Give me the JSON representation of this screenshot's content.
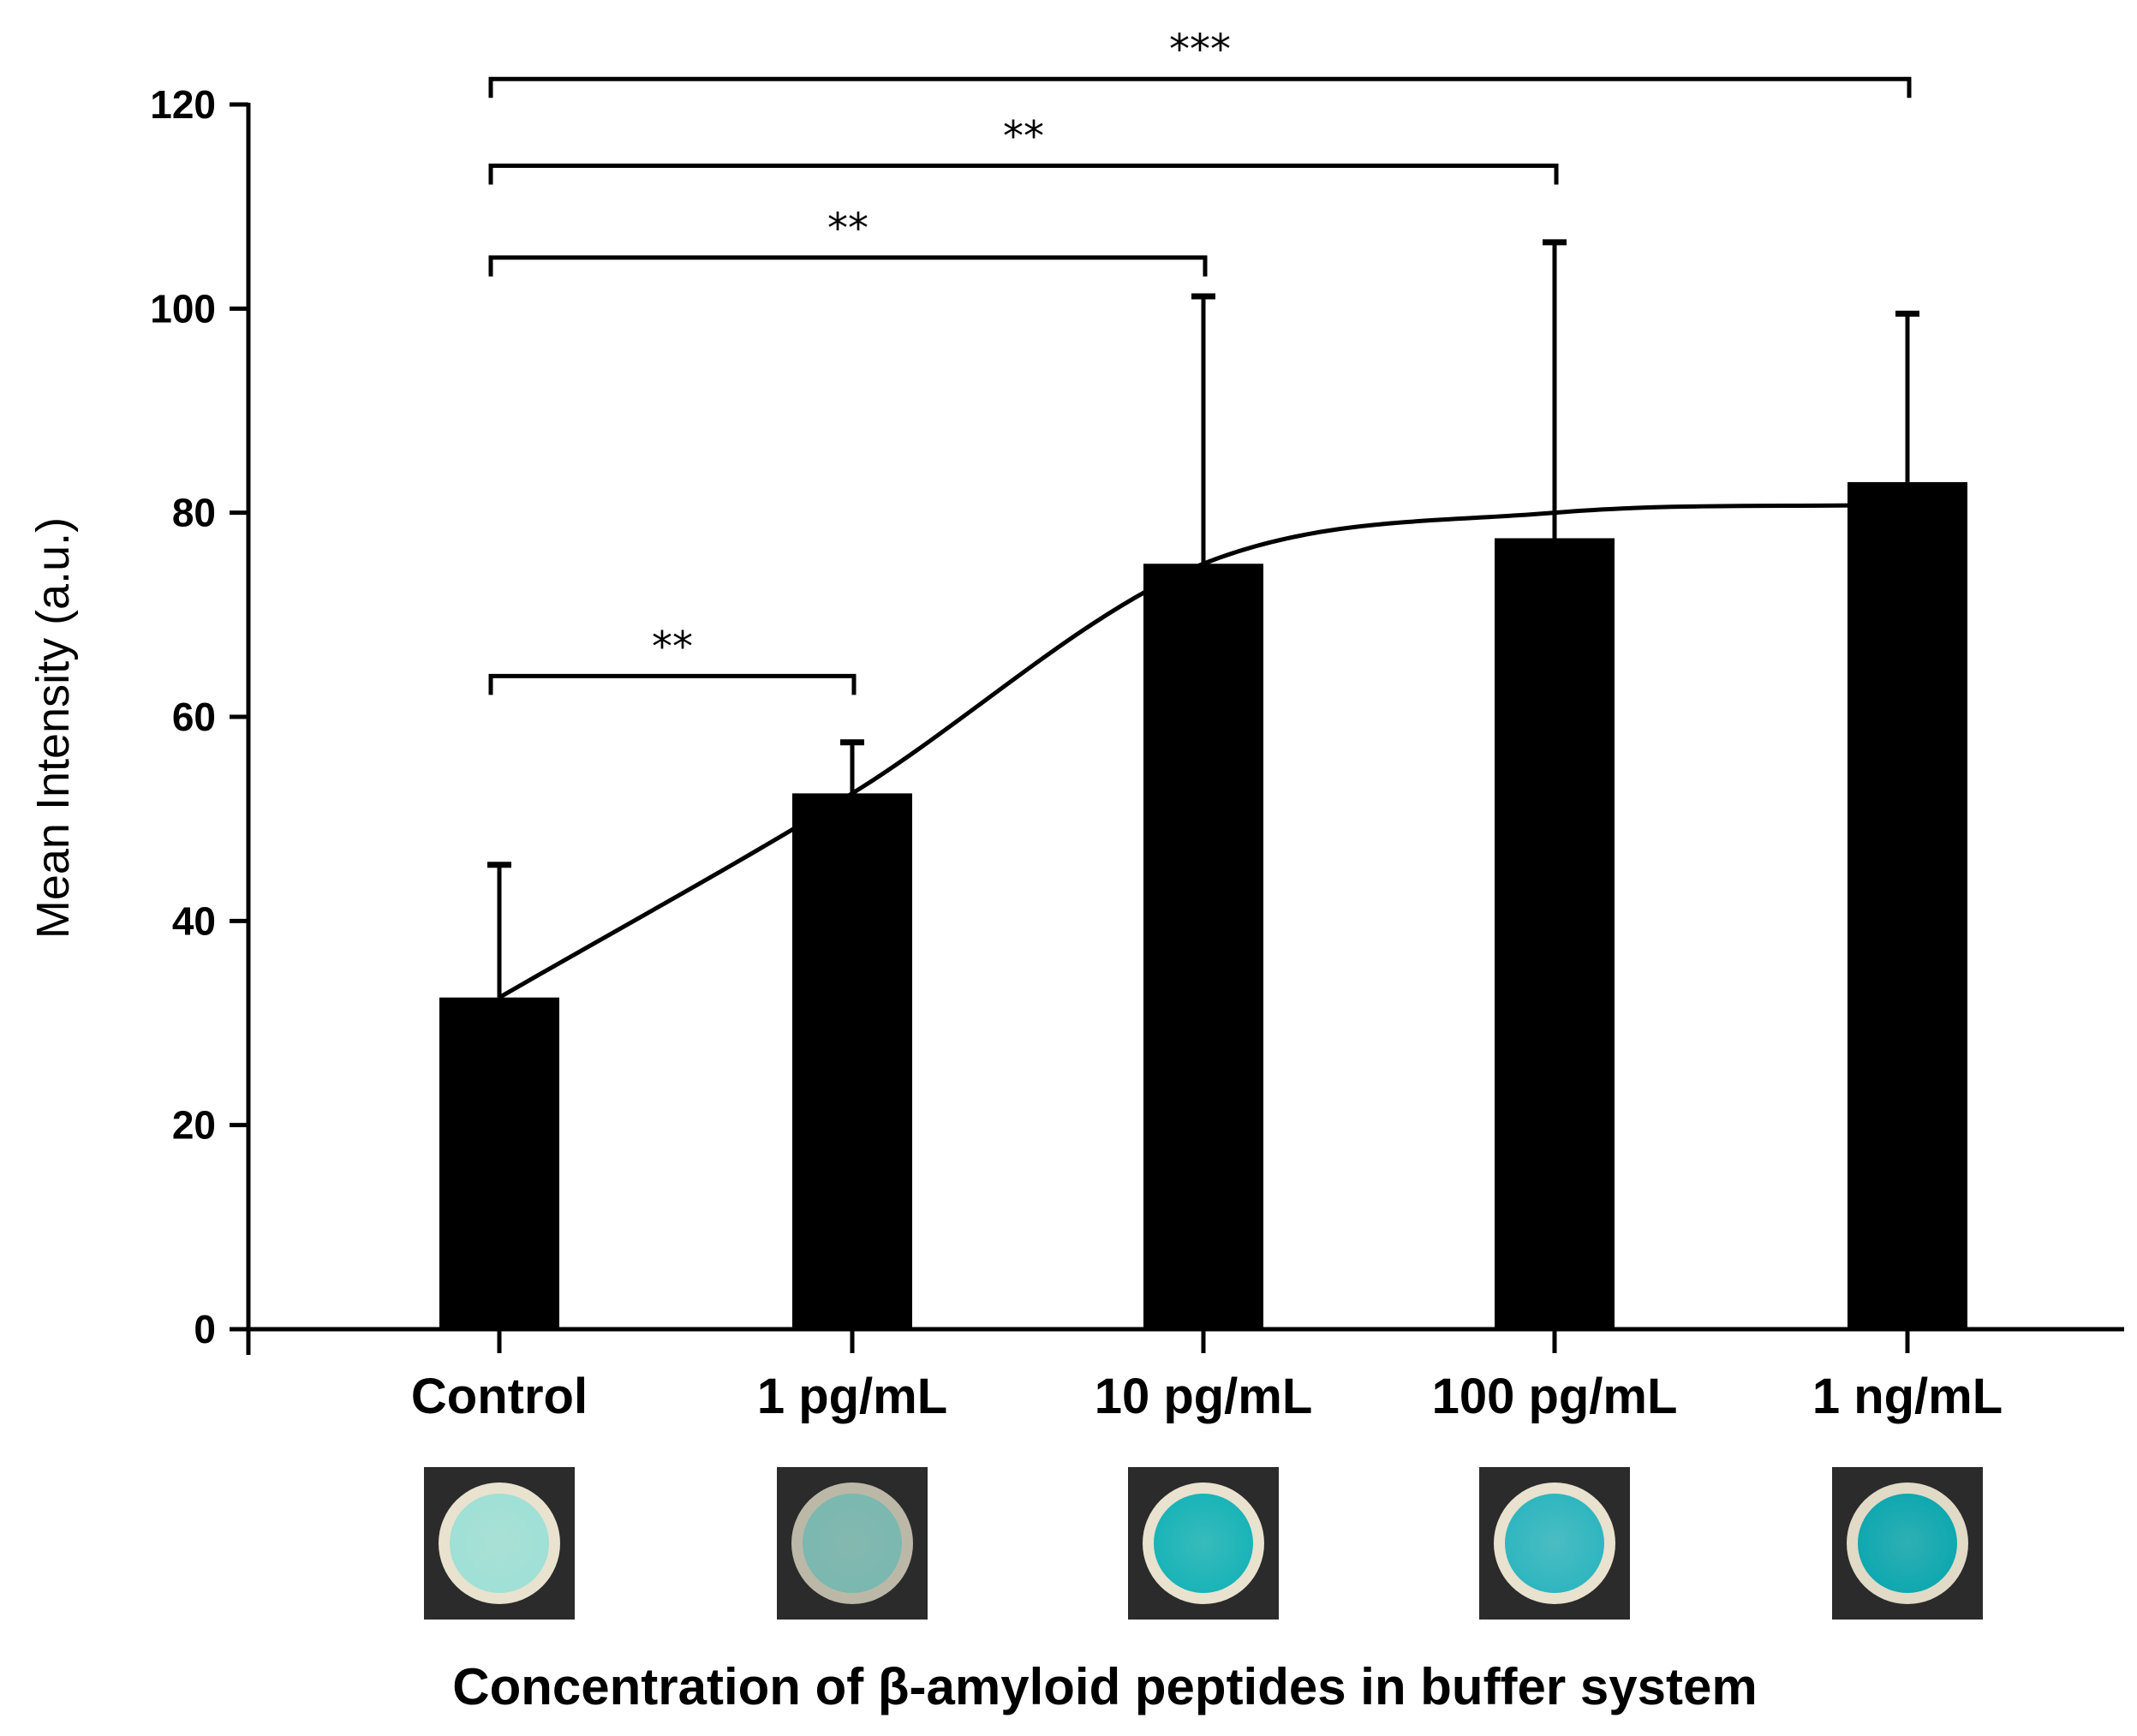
{
  "chart_data": {
    "type": "bar",
    "title": "",
    "xlabel": "Concentration of β-amyloid peptides in buffer system",
    "ylabel": "Mean Intensity (a.u.)",
    "ylim": [
      0,
      120
    ],
    "yticks": [
      0,
      20,
      40,
      60,
      80,
      100,
      120
    ],
    "categories": [
      "Control",
      "1 pg/mL",
      "10 pg/mL",
      "100 pg/mL",
      "1 ng/mL"
    ],
    "values": [
      32.5,
      52.5,
      75,
      77.5,
      83
    ],
    "error_upper": [
      45.5,
      57.5,
      101.2,
      106.5,
      99.5
    ],
    "fit_curve": [
      32.5,
      52.5,
      75,
      80,
      80.8
    ],
    "bar_color": "#000000",
    "grid": false,
    "legend": "none",
    "significance": [
      {
        "from": 0,
        "to": 1,
        "label": "**",
        "level": 64
      },
      {
        "from": 0,
        "to": 2,
        "label": "**",
        "level": 105
      },
      {
        "from": 0,
        "to": 3,
        "label": "**",
        "level": 114
      },
      {
        "from": 0,
        "to": 4,
        "label": "***",
        "level": 122.5
      }
    ],
    "sample_spots": [
      {
        "category": "Control",
        "spot_color": "#9fe0d6",
        "ring_color": "#e8e2cf"
      },
      {
        "category": "1 pg/mL",
        "spot_color": "#7ab8b0",
        "ring_color": "#bcb8a8"
      },
      {
        "category": "10 pg/mL",
        "spot_color": "#19b4b8",
        "ring_color": "#e8e2cf"
      },
      {
        "category": "100 pg/mL",
        "spot_color": "#2fb6c0",
        "ring_color": "#e8e2cf"
      },
      {
        "category": "1 ng/mL",
        "spot_color": "#0fa8b0",
        "ring_color": "#e0dac6"
      }
    ]
  }
}
